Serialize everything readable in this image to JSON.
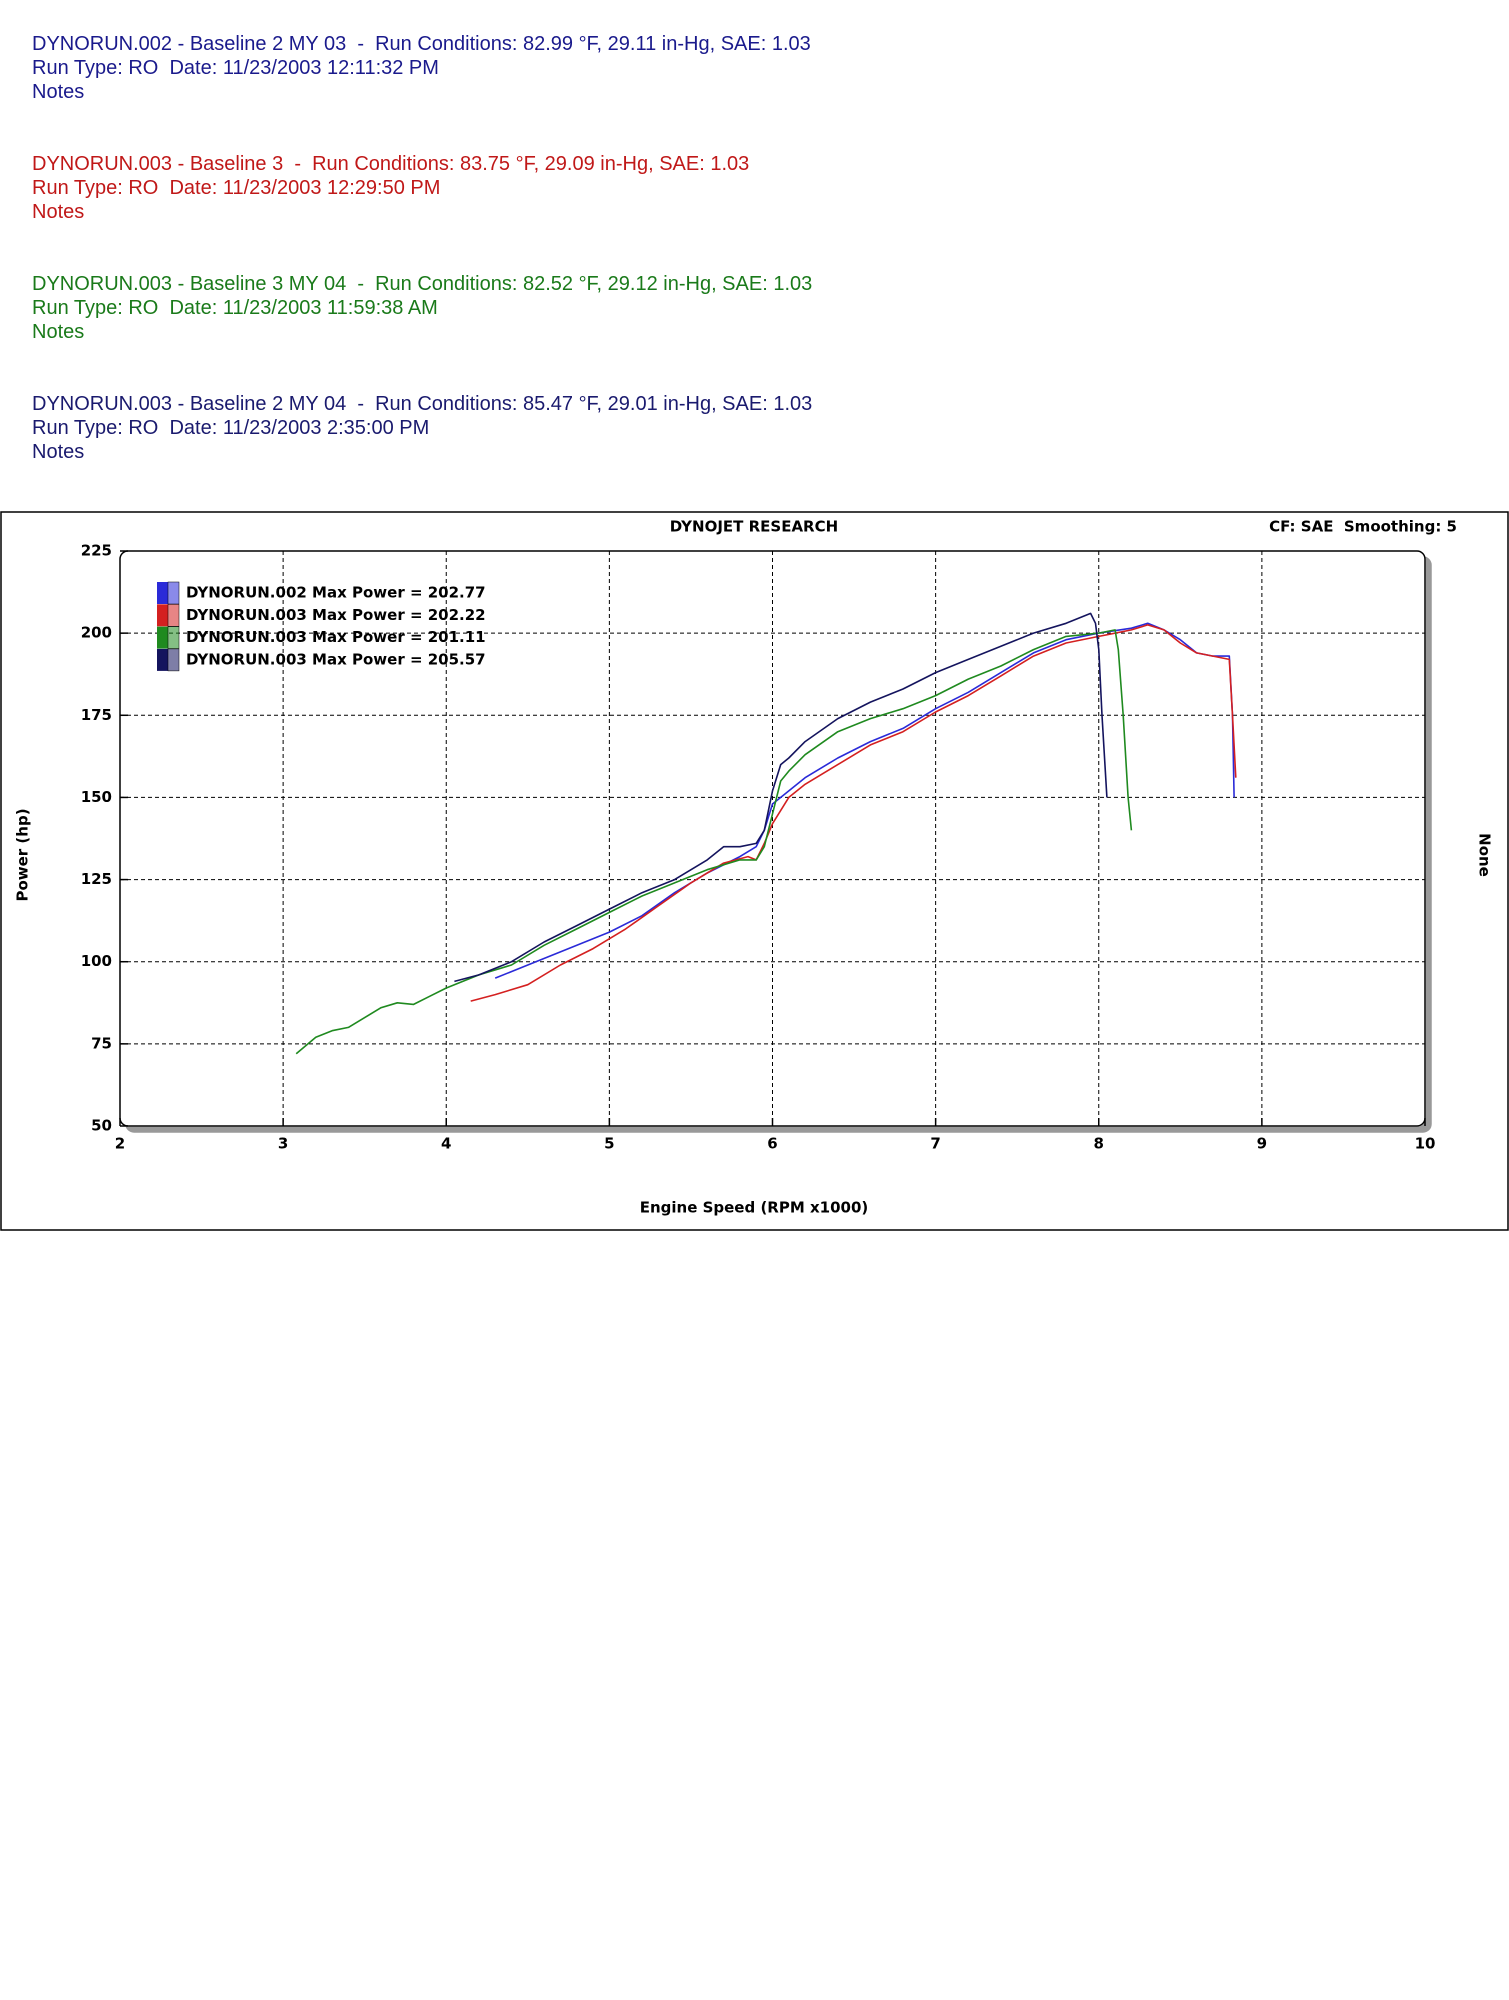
{
  "runs": [
    {
      "title": "DYNORUN.002 - Baseline 2 MY 03  -  Run Conditions: 82.99 °F, 29.11 in-Hg, SAE: 1.03",
      "run_type": "Run Type: RO  Date: 11/23/2003 12:11:32 PM",
      "notes": "Notes",
      "color": "#1a1a8c"
    },
    {
      "title": "DYNORUN.003 - Baseline 3  -  Run Conditions: 83.75 °F, 29.09 in-Hg, SAE: 1.03",
      "run_type": "Run Type: RO  Date: 11/23/2003 12:29:50 PM",
      "notes": "Notes",
      "color": "#c01818"
    },
    {
      "title": "DYNORUN.003 - Baseline 3 MY 04  -  Run Conditions: 82.52 °F, 29.12 in-Hg, SAE: 1.03",
      "run_type": "Run Type: RO  Date: 11/23/2003 11:59:38 AM",
      "notes": "Notes",
      "color": "#1a7a1a"
    },
    {
      "title": "DYNORUN.003 - Baseline 2 MY 04  -  Run Conditions: 85.47 °F, 29.01 in-Hg, SAE: 1.03",
      "run_type": "Run Type: RO  Date: 11/23/2003 2:35:00 PM",
      "notes": "Notes",
      "color": "#1a1a6e"
    }
  ],
  "chart_data": {
    "type": "line",
    "title": "DYNOJET RESEARCH",
    "corner_note": "CF: SAE  Smoothing: 5",
    "right_label": "None",
    "xlabel": "Engine Speed (RPM x1000)",
    "ylabel": "Power (hp)",
    "xlim": [
      2,
      10
    ],
    "ylim": [
      50,
      225
    ],
    "xticks": [
      2,
      3,
      4,
      5,
      6,
      7,
      8,
      9,
      10
    ],
    "yticks": [
      50,
      75,
      100,
      125,
      150,
      175,
      200,
      225
    ],
    "grid": true,
    "series": [
      {
        "name": "DYNORUN.002 Max Power = 202.77",
        "color": "#2a2ad8",
        "x": [
          4.3,
          4.5,
          4.7,
          5.0,
          5.2,
          5.4,
          5.6,
          5.8,
          5.9,
          5.95,
          6.0,
          6.1,
          6.2,
          6.4,
          6.6,
          6.8,
          7.0,
          7.2,
          7.4,
          7.6,
          7.8,
          8.0,
          8.2,
          8.3,
          8.4,
          8.5,
          8.6,
          8.7,
          8.8,
          8.82,
          8.83
        ],
        "values": [
          95,
          99,
          103,
          109,
          114,
          121,
          127,
          132,
          135,
          140,
          148,
          152,
          156,
          162,
          167,
          171,
          177,
          182,
          188,
          194,
          198,
          200,
          201.5,
          203,
          201,
          198,
          194,
          193,
          193,
          175,
          150
        ]
      },
      {
        "name": "DYNORUN.003 Max Power = 202.22",
        "color": "#d42020",
        "x": [
          4.15,
          4.3,
          4.5,
          4.7,
          4.9,
          5.1,
          5.3,
          5.5,
          5.7,
          5.85,
          5.9,
          5.95,
          6.0,
          6.1,
          6.2,
          6.4,
          6.6,
          6.8,
          7.0,
          7.2,
          7.4,
          7.6,
          7.8,
          8.0,
          8.2,
          8.3,
          8.4,
          8.5,
          8.6,
          8.7,
          8.8,
          8.82,
          8.84
        ],
        "values": [
          88,
          90,
          93,
          99,
          104,
          110,
          117,
          124,
          130,
          132,
          131,
          136,
          142,
          150,
          154,
          160,
          166,
          170,
          176,
          181,
          187,
          193,
          197,
          199,
          201,
          202.5,
          201,
          197,
          194,
          193,
          192,
          175,
          156
        ]
      },
      {
        "name": "DYNORUN.003 Max Power = 201.11",
        "color": "#1f8a1f",
        "x": [
          3.08,
          3.2,
          3.3,
          3.4,
          3.5,
          3.6,
          3.7,
          3.8,
          3.9,
          4.0,
          4.2,
          4.4,
          4.6,
          4.8,
          5.0,
          5.2,
          5.4,
          5.6,
          5.8,
          5.9,
          5.95,
          6.0,
          6.05,
          6.1,
          6.2,
          6.4,
          6.6,
          6.8,
          7.0,
          7.2,
          7.4,
          7.6,
          7.8,
          8.0,
          8.1,
          8.12,
          8.15,
          8.18,
          8.2
        ],
        "values": [
          72,
          77,
          79,
          80,
          83,
          86,
          87.5,
          87,
          89.5,
          92,
          96,
          99,
          105,
          110,
          115,
          120,
          124,
          128,
          131,
          131,
          135,
          145,
          155,
          158,
          163,
          170,
          174,
          177,
          181,
          186,
          190,
          195,
          199,
          200,
          201,
          195,
          175,
          150,
          140
        ]
      },
      {
        "name": "DYNORUN.003 Max Power = 205.57",
        "color": "#14145e",
        "x": [
          4.05,
          4.2,
          4.4,
          4.6,
          4.8,
          5.0,
          5.2,
          5.4,
          5.6,
          5.7,
          5.8,
          5.9,
          5.95,
          6.0,
          6.05,
          6.1,
          6.2,
          6.4,
          6.6,
          6.8,
          7.0,
          7.2,
          7.4,
          7.6,
          7.8,
          7.95,
          7.98,
          8.0,
          8.02,
          8.05
        ],
        "values": [
          94,
          96,
          100,
          106,
          111,
          116,
          121,
          125,
          131,
          135,
          135,
          136,
          140,
          152,
          160,
          162,
          167,
          174,
          179,
          183,
          188,
          192,
          196,
          200,
          203,
          206,
          203,
          195,
          175,
          150
        ]
      }
    ]
  }
}
